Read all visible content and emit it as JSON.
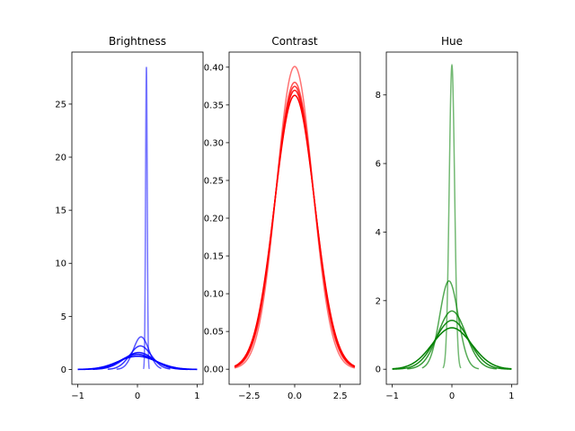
{
  "chart_data": [
    {
      "type": "line",
      "title": "Brightness",
      "xlim": [
        -1.1,
        1.1
      ],
      "ylim": [
        -1.4,
        29.9
      ],
      "xticks": [
        -1,
        0,
        1
      ],
      "xtick_labels": [
        "−1",
        "0",
        "1"
      ],
      "yticks": [
        0,
        5,
        10,
        15,
        20,
        25
      ],
      "ytick_labels": [
        "0",
        "5",
        "10",
        "15",
        "20",
        "25"
      ],
      "grid": false,
      "color": "#0000ff",
      "series": [
        {
          "mean": 0.15,
          "sd": 0.014,
          "x_range": [
            0.1,
            0.2
          ]
        },
        {
          "mean": 0.06,
          "sd": 0.13,
          "x_range": [
            -0.35,
            0.4
          ]
        },
        {
          "mean": 0.05,
          "sd": 0.18,
          "x_range": [
            -0.5,
            0.55
          ]
        },
        {
          "mean": 0.02,
          "sd": 0.25,
          "x_range": [
            -0.75,
            0.85
          ]
        },
        {
          "mean": 0.0,
          "sd": 0.28,
          "x_range": [
            -1.0,
            1.0
          ]
        },
        {
          "mean": 0.0,
          "sd": 0.32,
          "x_range": [
            -1.0,
            1.0
          ]
        }
      ]
    },
    {
      "type": "line",
      "title": "Contrast",
      "xlim": [
        -3.6,
        3.6
      ],
      "ylim": [
        -0.02,
        0.42
      ],
      "xticks": [
        -2.5,
        0.0,
        2.5
      ],
      "xtick_labels": [
        "−2.5",
        "0.0",
        "2.5"
      ],
      "yticks": [
        0.0,
        0.05,
        0.1,
        0.15,
        0.2,
        0.25,
        0.3,
        0.35,
        0.4
      ],
      "ytick_labels": [
        "0.00",
        "0.05",
        "0.10",
        "0.15",
        "0.20",
        "0.25",
        "0.30",
        "0.35",
        "0.40"
      ],
      "grid": false,
      "color": "#ff0000",
      "series": [
        {
          "mean": 0.0,
          "sd": 0.995,
          "x_range": [
            -3.3,
            3.3
          ]
        },
        {
          "mean": 0.0,
          "sd": 1.05,
          "x_range": [
            -3.3,
            3.3
          ]
        },
        {
          "mean": 0.0,
          "sd": 1.065,
          "x_range": [
            -3.3,
            3.3
          ]
        },
        {
          "mean": 0.0,
          "sd": 1.08,
          "x_range": [
            -3.3,
            3.3
          ]
        },
        {
          "mean": 0.0,
          "sd": 1.1,
          "x_range": [
            -3.3,
            3.3
          ]
        }
      ]
    },
    {
      "type": "line",
      "title": "Hue",
      "xlim": [
        -1.1,
        1.1
      ],
      "ylim": [
        -0.44,
        9.25
      ],
      "xticks": [
        -1,
        0,
        1
      ],
      "xtick_labels": [
        "−1",
        "0",
        "1"
      ],
      "yticks": [
        0,
        2,
        4,
        6,
        8
      ],
      "ytick_labels": [
        "0",
        "2",
        "4",
        "6",
        "8"
      ],
      "grid": false,
      "color": "#008000",
      "series": [
        {
          "mean": 0.0,
          "sd": 0.045,
          "x_range": [
            -0.15,
            0.15
          ]
        },
        {
          "mean": -0.05,
          "sd": 0.155,
          "x_range": [
            -0.5,
            0.45
          ]
        },
        {
          "mean": 0.0,
          "sd": 0.235,
          "x_range": [
            -0.75,
            0.75
          ]
        },
        {
          "mean": 0.0,
          "sd": 0.28,
          "x_range": [
            -1.0,
            1.0
          ]
        },
        {
          "mean": 0.0,
          "sd": 0.33,
          "x_range": [
            -1.0,
            1.0
          ]
        }
      ]
    }
  ]
}
